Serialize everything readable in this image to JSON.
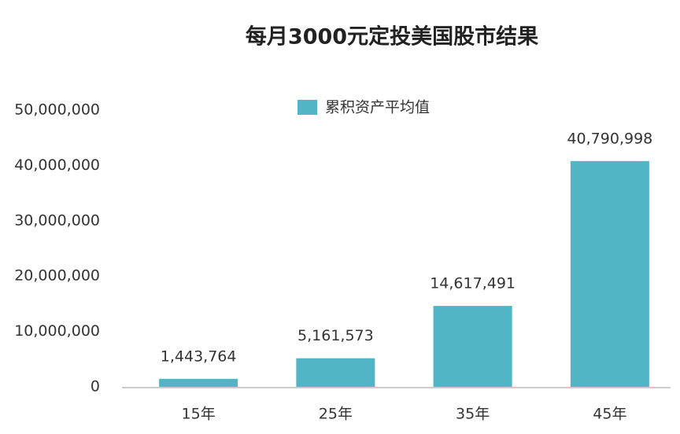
{
  "chart_data": {
    "type": "bar",
    "title": "每月3000元定投美国股市结果",
    "categories": [
      "15年",
      "25年",
      "35年",
      "45年"
    ],
    "series": [
      {
        "name": "累积资产平均值",
        "color": "#52b5c5",
        "values": [
          1443764,
          5161573,
          14617491,
          40790998
        ],
        "value_labels": [
          "1,443,764",
          "5,161,573",
          "14,617,491",
          "40,790,998"
        ]
      }
    ],
    "ylim": [
      0,
      50000000
    ],
    "yticks": [
      {
        "value": 0,
        "label": "0"
      },
      {
        "value": 10000000,
        "label": "10,000,000"
      },
      {
        "value": 20000000,
        "label": "20,000,000"
      },
      {
        "value": 30000000,
        "label": "30,000,000"
      },
      {
        "value": 40000000,
        "label": "40,000,000"
      },
      {
        "value": 50000000,
        "label": "50,000,000"
      }
    ],
    "grid": false,
    "legend": "top"
  }
}
